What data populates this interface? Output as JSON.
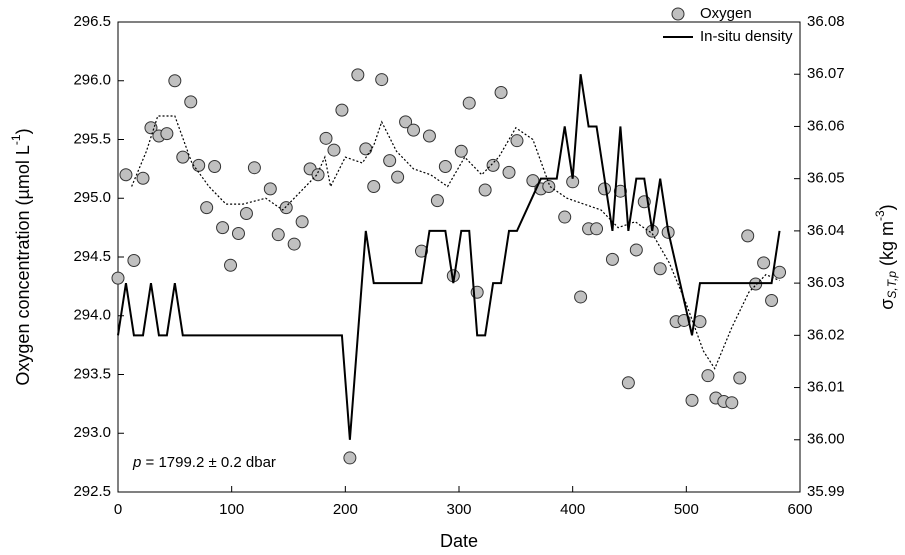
{
  "chart_data": {
    "type": "scatter",
    "x_label": "Date",
    "y_label": [
      "Oxygen concentration (µmol L",
      "-1",
      ")"
    ],
    "y2_label": [
      "σ",
      "S,T,p",
      " (kg m",
      "-3",
      ")"
    ],
    "annotation": [
      "p",
      " = 1799.2 ± 0.2 dbar"
    ],
    "xlim": [
      0,
      600
    ],
    "xticks": [
      0,
      100,
      200,
      300,
      400,
      500,
      600
    ],
    "ylim": [
      292.5,
      296.5
    ],
    "yticks": [
      292.5,
      {
        "value": 293,
        "label": "293.0"
      },
      293.5,
      {
        "value": 294,
        "label": "294.0"
      },
      294.5,
      {
        "value": 295,
        "label": "295.0"
      },
      295.5,
      {
        "value": 296,
        "label": "296.0"
      },
      296.5
    ],
    "y2lim": [
      35.99,
      36.08
    ],
    "y2ticks": [
      35.99,
      {
        "value": 36,
        "label": "36.00"
      },
      36.01,
      36.02,
      36.03,
      36.04,
      36.05,
      36.06,
      36.07,
      36.08
    ],
    "legend": "upper right",
    "series": [
      {
        "name": "Oxygen",
        "type": "scatter",
        "color": "#c0c0c0",
        "x": [
          0,
          7,
          14,
          22,
          29,
          36,
          43,
          50,
          57,
          64,
          71,
          78,
          85,
          92,
          99,
          106,
          113,
          120,
          134,
          141,
          148,
          155,
          162,
          169,
          176,
          183,
          190,
          197,
          204,
          211,
          218,
          225,
          232,
          239,
          246,
          253,
          260,
          267,
          274,
          281,
          288,
          295,
          302,
          309,
          316,
          323,
          330,
          337,
          344,
          351,
          365,
          372,
          379,
          393,
          400,
          407,
          414,
          421,
          428,
          435,
          442,
          449,
          456,
          463,
          470,
          477,
          484,
          491,
          498,
          505,
          512,
          519,
          526,
          533,
          540,
          547,
          554,
          561,
          568,
          575,
          582
        ],
        "values": [
          294.32,
          295.2,
          294.47,
          295.17,
          295.6,
          295.53,
          295.55,
          296.0,
          295.35,
          295.82,
          295.28,
          294.92,
          295.27,
          294.75,
          294.43,
          294.7,
          294.87,
          295.26,
          295.08,
          294.69,
          294.92,
          294.61,
          294.8,
          295.25,
          295.2,
          295.51,
          295.41,
          295.75,
          292.79,
          296.05,
          295.42,
          295.1,
          296.01,
          295.32,
          295.18,
          295.65,
          295.58,
          294.55,
          295.53,
          294.98,
          295.27,
          294.34,
          295.4,
          295.81,
          294.2,
          295.07,
          295.28,
          295.9,
          295.22,
          295.49,
          295.15,
          295.08,
          295.1,
          294.84,
          295.14,
          294.16,
          294.74,
          294.74,
          295.08,
          294.48,
          295.06,
          293.43,
          294.56,
          294.97,
          294.72,
          294.4,
          294.71,
          293.95,
          293.96,
          293.28,
          293.95,
          293.49,
          293.3,
          293.27,
          293.26,
          293.47,
          294.68,
          294.27,
          294.45,
          294.13,
          294.37
        ]
      },
      {
        "name": "In-situ density",
        "type": "line",
        "axis": "y2",
        "color": "#000000",
        "x": [
          0,
          7,
          14,
          22,
          29,
          36,
          43,
          50,
          57,
          197,
          204,
          218,
          225,
          267,
          274,
          288,
          295,
          302,
          309,
          316,
          323,
          330,
          337,
          344,
          351,
          372,
          386,
          393,
          400,
          407,
          414,
          421,
          435,
          442,
          449,
          456,
          463,
          470,
          477,
          484,
          505,
          512,
          575,
          582
        ],
        "values": [
          36.02,
          36.03,
          36.02,
          36.02,
          36.03,
          36.02,
          36.02,
          36.03,
          36.02,
          36.02,
          36.0,
          36.04,
          36.03,
          36.03,
          36.04,
          36.04,
          36.03,
          36.04,
          36.04,
          36.02,
          36.02,
          36.03,
          36.03,
          36.04,
          36.04,
          36.05,
          36.05,
          36.06,
          36.05,
          36.07,
          36.06,
          36.06,
          36.04,
          36.06,
          36.04,
          36.05,
          36.05,
          36.04,
          36.05,
          36.04,
          36.02,
          36.03,
          36.03,
          36.04
        ]
      },
      {
        "type": "line",
        "style": "dotted",
        "color": "#000000",
        "x": [
          12,
          25,
          35,
          50,
          65,
          80,
          95,
          110,
          130,
          145,
          160,
          175,
          182,
          187,
          200,
          215,
          225,
          232,
          245,
          260,
          275,
          290,
          305,
          320,
          335,
          350,
          365,
          380,
          395,
          410,
          425,
          440,
          455,
          470,
          485,
          500,
          515,
          525,
          540,
          555,
          570,
          582
        ],
        "values": [
          295.1,
          295.4,
          295.7,
          295.7,
          295.3,
          295.1,
          294.95,
          294.95,
          295.0,
          294.9,
          295.05,
          295.2,
          295.35,
          295.1,
          295.35,
          295.3,
          295.45,
          295.65,
          295.4,
          295.25,
          295.2,
          295.1,
          295.35,
          295.2,
          295.35,
          295.6,
          295.5,
          295.1,
          295.0,
          294.95,
          294.9,
          294.75,
          294.8,
          294.7,
          294.45,
          294.1,
          293.7,
          293.55,
          293.9,
          294.2,
          294.35,
          294.3
        ]
      }
    ]
  }
}
